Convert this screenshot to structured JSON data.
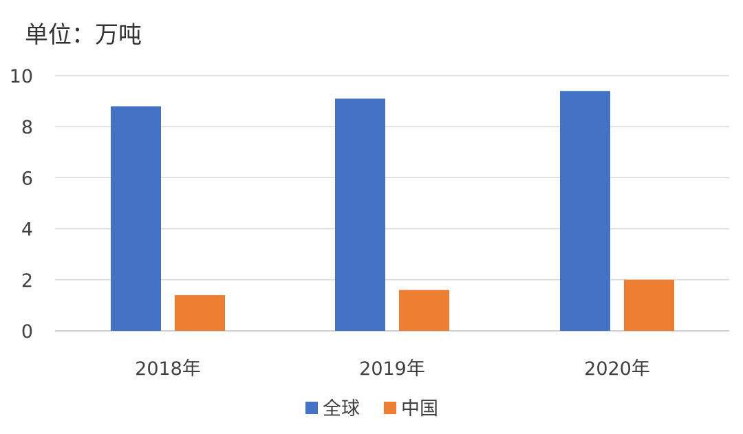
{
  "chart_data": {
    "type": "bar",
    "unit_label": "单位：万吨",
    "categories": [
      "2018年",
      "2019年",
      "2020年"
    ],
    "series": [
      {
        "name": "全球",
        "color": "#4472C4",
        "values": [
          8.8,
          9.1,
          9.4
        ]
      },
      {
        "name": "中国",
        "color": "#ED7D31",
        "values": [
          1.4,
          1.6,
          2.0
        ]
      }
    ],
    "ylim": [
      0,
      10
    ],
    "yticks": [
      0,
      2,
      4,
      6,
      8,
      10
    ],
    "grid": true,
    "legend_position": "bottom"
  }
}
